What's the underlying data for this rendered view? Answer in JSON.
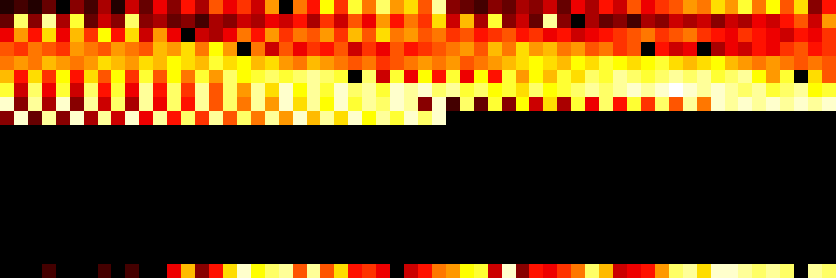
{
  "chart_data": {
    "type": "heatmap",
    "tick_labels": false,
    "grid": false,
    "zlim": [
      0,
      1
    ],
    "z": [
      [
        0.05,
        0.1,
        0.05,
        0.15,
        0.0,
        0.2,
        0.1,
        0.25,
        0.05,
        0.3,
        0.15,
        0.35,
        0.2,
        0.4,
        0.25,
        0.5,
        0.35,
        0.45,
        0.3,
        0.6,
        0.0,
        0.55,
        0.4,
        0.75,
        0.45,
        0.8,
        0.55,
        0.85,
        0.6,
        0.7,
        0.5,
        0.9,
        0.2,
        0.15,
        0.1,
        0.2,
        0.15,
        0.25,
        0.2,
        0.3,
        0.15,
        0.35,
        0.25,
        0.4,
        0.3,
        0.5,
        0.35,
        0.45,
        0.5,
        0.6,
        0.55,
        0.7,
        0.6,
        0.8,
        0.55,
        0.75,
        0.5,
        0.7,
        0.2,
        0.4
      ],
      [
        0.15,
        0.85,
        0.2,
        0.9,
        0.25,
        0.8,
        0.15,
        0.3,
        0.2,
        0.85,
        0.2,
        0.25,
        0.15,
        0.2,
        0.1,
        0.25,
        0.2,
        0.3,
        0.25,
        0.35,
        0.3,
        0.4,
        0.25,
        0.45,
        0.3,
        0.5,
        0.35,
        0.6,
        0.4,
        0.55,
        0.45,
        0.7,
        0.3,
        0.65,
        0.25,
        0.8,
        0.2,
        0.3,
        0.15,
        0.9,
        0.2,
        0.0,
        0.25,
        0.15,
        0.2,
        0.1,
        0.25,
        0.2,
        0.3,
        0.25,
        0.3,
        0.2,
        0.3,
        0.25,
        0.35,
        0.3,
        0.4,
        0.5,
        0.3,
        0.6
      ],
      [
        0.35,
        0.6,
        0.4,
        0.7,
        0.35,
        0.65,
        0.45,
        0.75,
        0.4,
        0.7,
        0.3,
        0.6,
        0.35,
        0.0,
        0.3,
        0.25,
        0.35,
        0.55,
        0.4,
        0.6,
        0.45,
        0.55,
        0.5,
        0.6,
        0.45,
        0.65,
        0.5,
        0.7,
        0.55,
        0.6,
        0.5,
        0.55,
        0.45,
        0.5,
        0.4,
        0.45,
        0.5,
        0.4,
        0.45,
        0.35,
        0.4,
        0.3,
        0.35,
        0.4,
        0.45,
        0.5,
        0.55,
        0.45,
        0.5,
        0.55,
        0.45,
        0.4,
        0.35,
        0.45,
        0.4,
        0.35,
        0.3,
        0.4,
        0.35,
        0.45
      ],
      [
        0.5,
        0.45,
        0.55,
        0.5,
        0.45,
        0.6,
        0.55,
        0.5,
        0.6,
        0.55,
        0.5,
        0.65,
        0.6,
        0.7,
        0.55,
        0.75,
        0.6,
        0.0,
        0.55,
        0.3,
        0.5,
        0.35,
        0.45,
        0.4,
        0.5,
        0.3,
        0.45,
        0.35,
        0.5,
        0.4,
        0.45,
        0.5,
        0.55,
        0.6,
        0.5,
        0.65,
        0.55,
        0.7,
        0.6,
        0.65,
        0.55,
        0.6,
        0.5,
        0.55,
        0.45,
        0.5,
        0.0,
        0.4,
        0.3,
        0.35,
        0.0,
        0.25,
        0.35,
        0.3,
        0.4,
        0.35,
        0.45,
        0.5,
        0.4,
        0.45
      ],
      [
        0.55,
        0.6,
        0.55,
        0.65,
        0.6,
        0.55,
        0.6,
        0.7,
        0.65,
        0.6,
        0.7,
        0.65,
        0.75,
        0.7,
        0.65,
        0.8,
        0.7,
        0.75,
        0.65,
        0.7,
        0.6,
        0.55,
        0.65,
        0.6,
        0.55,
        0.5,
        0.55,
        0.45,
        0.5,
        0.55,
        0.6,
        0.55,
        0.6,
        0.5,
        0.55,
        0.6,
        0.65,
        0.7,
        0.75,
        0.7,
        0.65,
        0.75,
        0.7,
        0.8,
        0.75,
        0.7,
        0.75,
        0.8,
        0.7,
        0.65,
        0.7,
        0.75,
        0.65,
        0.6,
        0.55,
        0.6,
        0.55,
        0.5,
        0.55,
        0.5
      ],
      [
        0.65,
        0.4,
        0.7,
        0.45,
        0.75,
        0.4,
        0.7,
        0.5,
        0.75,
        0.45,
        0.8,
        0.5,
        0.75,
        0.55,
        0.8,
        0.6,
        0.85,
        0.75,
        0.8,
        0.85,
        0.8,
        0.85,
        0.9,
        0.85,
        0.8,
        0.0,
        0.85,
        0.3,
        0.8,
        0.35,
        0.75,
        0.4,
        0.8,
        0.35,
        0.75,
        0.4,
        0.8,
        0.6,
        0.75,
        0.65,
        0.8,
        0.7,
        0.85,
        0.8,
        0.9,
        0.85,
        0.8,
        0.85,
        0.9,
        0.85,
        0.9,
        0.8,
        0.85,
        0.9,
        0.75,
        0.6,
        0.8,
        0.0,
        0.7,
        0.5
      ],
      [
        0.8,
        0.3,
        0.85,
        0.35,
        0.8,
        0.3,
        0.85,
        0.4,
        0.8,
        0.35,
        0.9,
        0.4,
        0.85,
        0.45,
        0.9,
        0.5,
        0.85,
        0.6,
        0.9,
        0.7,
        0.95,
        0.75,
        0.9,
        0.8,
        0.95,
        0.85,
        0.9,
        0.8,
        0.95,
        0.9,
        0.95,
        0.85,
        0.9,
        0.8,
        0.85,
        0.75,
        0.8,
        0.7,
        0.85,
        0.75,
        0.8,
        0.85,
        0.9,
        0.85,
        0.9,
        0.95,
        0.9,
        0.95,
        1.0,
        0.95,
        0.9,
        0.95,
        0.9,
        0.85,
        0.9,
        0.8,
        0.85,
        0.9,
        0.75,
        0.8
      ],
      [
        0.95,
        0.2,
        0.9,
        0.25,
        0.95,
        0.2,
        0.9,
        0.3,
        0.85,
        0.25,
        0.9,
        0.35,
        0.85,
        0.4,
        0.9,
        0.5,
        0.85,
        0.55,
        0.9,
        0.6,
        0.95,
        0.7,
        0.9,
        0.75,
        0.95,
        0.8,
        0.9,
        0.85,
        0.95,
        0.9,
        0.2,
        0.95,
        0.1,
        0.85,
        0.15,
        0.8,
        0.2,
        0.75,
        0.3,
        0.7,
        0.25,
        0.8,
        0.35,
        0.85,
        0.4,
        0.8,
        0.45,
        0.85,
        0.5,
        0.9,
        0.55,
        0.95,
        0.9,
        0.95,
        0.9,
        0.95,
        0.9,
        0.95,
        0.9,
        0.95
      ],
      [
        0.2,
        0.95,
        0.15,
        0.9,
        0.2,
        0.95,
        0.25,
        0.9,
        0.3,
        0.95,
        0.35,
        0.9,
        0.4,
        0.85,
        0.45,
        0.9,
        0.5,
        0.85,
        0.55,
        0.9,
        0.6,
        0.95,
        0.65,
        0.9,
        0.7,
        0.95,
        0.75,
        0.9,
        0.8,
        0.95,
        0.85,
        0.95,
        0,
        0,
        0,
        0,
        0,
        0,
        0,
        0,
        0,
        0,
        0,
        0,
        0,
        0,
        0,
        0,
        0,
        0,
        0,
        0,
        0,
        0,
        0,
        0,
        0,
        0,
        0,
        0
      ],
      [
        0,
        0,
        0,
        0,
        0,
        0,
        0,
        0,
        0,
        0,
        0,
        0,
        0,
        0,
        0,
        0,
        0,
        0,
        0,
        0,
        0,
        0,
        0,
        0,
        0,
        0,
        0,
        0,
        0,
        0,
        0,
        0,
        0,
        0,
        0,
        0,
        0,
        0,
        0,
        0,
        0,
        0,
        0,
        0,
        0,
        0,
        0,
        0,
        0,
        0,
        0,
        0,
        0,
        0,
        0,
        0,
        0,
        0,
        0,
        0
      ],
      [
        0,
        0,
        0,
        0,
        0,
        0,
        0,
        0,
        0,
        0,
        0,
        0,
        0,
        0,
        0,
        0,
        0,
        0,
        0,
        0,
        0,
        0,
        0,
        0,
        0,
        0,
        0,
        0,
        0,
        0,
        0,
        0,
        0,
        0,
        0,
        0,
        0,
        0,
        0,
        0,
        0,
        0,
        0,
        0,
        0,
        0,
        0,
        0,
        0,
        0,
        0,
        0,
        0,
        0,
        0,
        0,
        0,
        0,
        0,
        0
      ],
      [
        0,
        0,
        0,
        0,
        0,
        0,
        0,
        0,
        0,
        0,
        0,
        0,
        0,
        0,
        0,
        0,
        0,
        0,
        0,
        0,
        0,
        0,
        0,
        0,
        0,
        0,
        0,
        0,
        0,
        0,
        0,
        0,
        0,
        0,
        0,
        0,
        0,
        0,
        0,
        0,
        0,
        0,
        0,
        0,
        0,
        0,
        0,
        0,
        0,
        0,
        0,
        0,
        0,
        0,
        0,
        0,
        0,
        0,
        0,
        0
      ],
      [
        0,
        0,
        0,
        0,
        0,
        0,
        0,
        0,
        0,
        0,
        0,
        0,
        0,
        0,
        0,
        0,
        0,
        0,
        0,
        0,
        0,
        0,
        0,
        0,
        0,
        0,
        0,
        0,
        0,
        0,
        0,
        0,
        0,
        0,
        0,
        0,
        0,
        0,
        0,
        0,
        0,
        0,
        0,
        0,
        0,
        0,
        0,
        0,
        0,
        0,
        0,
        0,
        0,
        0,
        0,
        0,
        0,
        0,
        0,
        0
      ],
      [
        0,
        0,
        0,
        0,
        0,
        0,
        0,
        0,
        0,
        0,
        0,
        0,
        0,
        0,
        0,
        0,
        0,
        0,
        0,
        0,
        0,
        0,
        0,
        0,
        0,
        0,
        0,
        0,
        0,
        0,
        0,
        0,
        0,
        0,
        0,
        0,
        0,
        0,
        0,
        0,
        0,
        0,
        0,
        0,
        0,
        0,
        0,
        0,
        0,
        0,
        0,
        0,
        0,
        0,
        0,
        0,
        0,
        0,
        0,
        0
      ],
      [
        0,
        0,
        0,
        0,
        0,
        0,
        0,
        0,
        0,
        0,
        0,
        0,
        0,
        0,
        0,
        0,
        0,
        0,
        0,
        0,
        0,
        0,
        0,
        0,
        0,
        0,
        0,
        0,
        0,
        0,
        0,
        0,
        0,
        0,
        0,
        0,
        0,
        0,
        0,
        0,
        0,
        0,
        0,
        0,
        0,
        0,
        0,
        0,
        0,
        0,
        0,
        0,
        0,
        0,
        0,
        0,
        0,
        0,
        0,
        0
      ],
      [
        0,
        0,
        0,
        0,
        0,
        0,
        0,
        0,
        0,
        0,
        0,
        0,
        0,
        0,
        0,
        0,
        0,
        0,
        0,
        0,
        0,
        0,
        0,
        0,
        0,
        0,
        0,
        0,
        0,
        0,
        0,
        0,
        0,
        0,
        0,
        0,
        0,
        0,
        0,
        0,
        0,
        0,
        0,
        0,
        0,
        0,
        0,
        0,
        0,
        0,
        0,
        0,
        0,
        0,
        0,
        0,
        0,
        0,
        0,
        0
      ],
      [
        0,
        0,
        0,
        0,
        0,
        0,
        0,
        0,
        0,
        0,
        0,
        0,
        0,
        0,
        0,
        0,
        0,
        0,
        0,
        0,
        0,
        0,
        0,
        0,
        0,
        0,
        0,
        0,
        0,
        0,
        0,
        0,
        0,
        0,
        0,
        0,
        0,
        0,
        0,
        0,
        0,
        0,
        0,
        0,
        0,
        0,
        0,
        0,
        0,
        0,
        0,
        0,
        0,
        0,
        0,
        0,
        0,
        0,
        0,
        0
      ],
      [
        0,
        0,
        0,
        0,
        0,
        0,
        0,
        0,
        0,
        0,
        0,
        0,
        0,
        0,
        0,
        0,
        0,
        0,
        0,
        0,
        0,
        0,
        0,
        0,
        0,
        0,
        0,
        0,
        0,
        0,
        0,
        0,
        0,
        0,
        0,
        0,
        0,
        0,
        0,
        0,
        0,
        0,
        0,
        0,
        0,
        0,
        0,
        0,
        0,
        0,
        0,
        0,
        0,
        0,
        0,
        0,
        0,
        0,
        0,
        0
      ],
      [
        0,
        0,
        0,
        0,
        0,
        0,
        0,
        0,
        0,
        0,
        0,
        0,
        0,
        0,
        0,
        0,
        0,
        0,
        0,
        0,
        0,
        0,
        0,
        0,
        0,
        0,
        0,
        0,
        0,
        0,
        0,
        0,
        0,
        0,
        0,
        0,
        0,
        0,
        0,
        0,
        0,
        0,
        0,
        0,
        0,
        0,
        0,
        0,
        0,
        0,
        0,
        0,
        0,
        0,
        0,
        0,
        0,
        0,
        0,
        0
      ],
      [
        0,
        0,
        0,
        0.1,
        0,
        0,
        0,
        0.1,
        0,
        0.1,
        0,
        0,
        0.35,
        0.65,
        0.2,
        0.4,
        0.7,
        0.95,
        0.75,
        0.85,
        0.9,
        0.5,
        0.9,
        0.5,
        0.7,
        0.4,
        0.45,
        0.35,
        0,
        0.3,
        0.4,
        0.55,
        0.6,
        0.75,
        0.8,
        0.3,
        0.95,
        0.2,
        0.4,
        0.35,
        0.45,
        0.55,
        0.85,
        0.65,
        0.3,
        0.35,
        0.4,
        0.6,
        0.85,
        0.9,
        0.7,
        0.95,
        0.95,
        0.9,
        0.85,
        0.9,
        0.85,
        0.0,
        0.9,
        0.85
      ]
    ]
  }
}
